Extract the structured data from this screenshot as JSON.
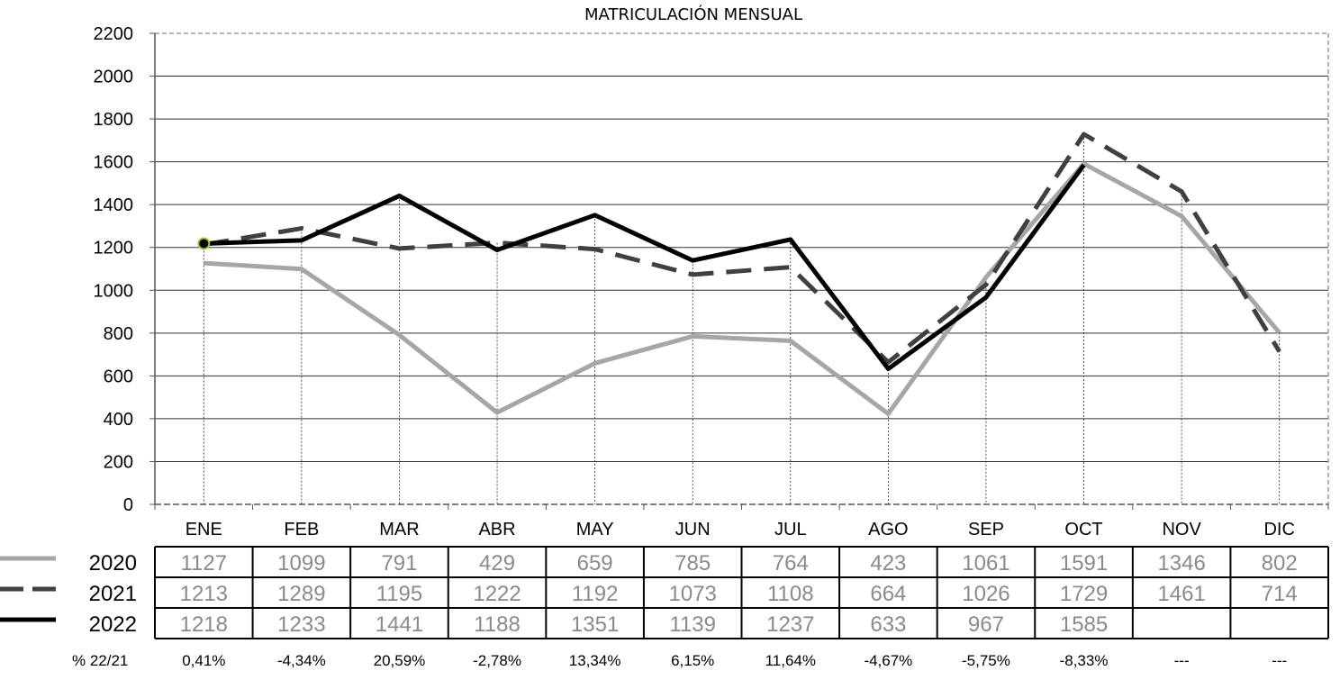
{
  "chart_data": {
    "type": "line",
    "title": "MATRICULACIÓN MENSUAL",
    "categories": [
      "ENE",
      "FEB",
      "MAR",
      "ABR",
      "MAY",
      "JUN",
      "JUL",
      "AGO",
      "SEP",
      "OCT",
      "NOV",
      "DIC"
    ],
    "ylim": [
      0,
      2200
    ],
    "yticks": [
      "0",
      "200",
      "400",
      "600",
      "800",
      "1000",
      "1200",
      "1400",
      "1600",
      "1800",
      "2000",
      "2200"
    ],
    "grid": true,
    "series": [
      {
        "name": "2020",
        "color": "#a6a6a6",
        "style": "solid",
        "values": [
          1127,
          1099,
          791,
          429,
          659,
          785,
          764,
          423,
          1061,
          1591,
          1346,
          802
        ]
      },
      {
        "name": "2021",
        "color": "#404040",
        "style": "dashed",
        "values": [
          1213,
          1289,
          1195,
          1222,
          1192,
          1073,
          1108,
          664,
          1026,
          1729,
          1461,
          714
        ]
      },
      {
        "name": "2022",
        "color": "#000000",
        "style": "solid",
        "values": [
          1218,
          1233,
          1441,
          1188,
          1351,
          1139,
          1237,
          633,
          967,
          1585,
          null,
          null
        ]
      }
    ],
    "table_rows": [
      {
        "label": "2020",
        "cells": [
          "1127",
          "1099",
          "791",
          "429",
          "659",
          "785",
          "764",
          "423",
          "1061",
          "1591",
          "1346",
          "802"
        ]
      },
      {
        "label": "2021",
        "cells": [
          "1213",
          "1289",
          "1195",
          "1222",
          "1192",
          "1073",
          "1108",
          "664",
          "1026",
          "1729",
          "1461",
          "714"
        ]
      },
      {
        "label": "2022",
        "cells": [
          "1218",
          "1233",
          "1441",
          "1188",
          "1351",
          "1139",
          "1237",
          "633",
          "967",
          "1585",
          "",
          ""
        ]
      }
    ],
    "pct_label": "% 22/21",
    "pct_values": [
      "0,41%",
      "-4,34%",
      "20,59%",
      "-2,78%",
      "13,34%",
      "6,15%",
      "11,64%",
      "-4,67%",
      "-5,75%",
      "-8,33%",
      "---",
      "---"
    ]
  }
}
